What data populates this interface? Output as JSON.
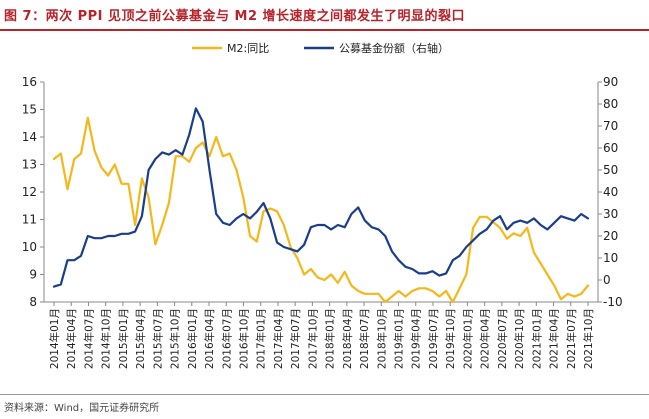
{
  "figure": {
    "title": "图 7：两次 PPI 见顶之前公募基金与 M2 增长速度之间都发生了明显的裂口",
    "source": "资料来源：Wind，国元证券研究所"
  },
  "colors": {
    "title": "#b8232a",
    "m2": "#f5b719",
    "fund": "#1a3e8c",
    "axis": "#888888"
  },
  "chart_data": {
    "type": "line",
    "title": "",
    "grid": false,
    "legend_position": "top-center",
    "left_axis": {
      "ylim": [
        8,
        16
      ],
      "ticks": [
        8,
        9,
        10,
        11,
        12,
        13,
        14,
        15,
        16
      ]
    },
    "right_axis": {
      "ylim": [
        -10,
        90
      ],
      "ticks": [
        -10,
        0,
        10,
        20,
        30,
        40,
        50,
        60,
        70,
        80,
        90
      ]
    },
    "x_labels": [
      "2014年01月",
      "2014年04月",
      "2014年07月",
      "2014年10月",
      "2015年01月",
      "2015年04月",
      "2015年07月",
      "2015年10月",
      "2016年01月",
      "2016年04月",
      "2016年07月",
      "2016年10月",
      "2017年01月",
      "2017年04月",
      "2017年07月",
      "2017年10月",
      "2018年01月",
      "2018年04月",
      "2018年07月",
      "2018年10月",
      "2019年01月",
      "2019年04月",
      "2019年07月",
      "2019年10月",
      "2020年01月",
      "2020年04月",
      "2020年07月",
      "2020年10月",
      "2021年01月",
      "2021年04月",
      "2021年07月",
      "2021年10月"
    ],
    "series": [
      {
        "name": "M2:同比",
        "axis": "left",
        "values": [
          13.2,
          13.4,
          12.1,
          13.2,
          13.4,
          14.7,
          13.5,
          12.9,
          12.6,
          13.0,
          12.3,
          12.3,
          10.8,
          12.5,
          11.8,
          10.1,
          10.8,
          11.6,
          13.3,
          13.3,
          13.1,
          13.6,
          13.8,
          13.3,
          14.0,
          13.3,
          13.4,
          12.8,
          11.8,
          10.4,
          10.2,
          11.3,
          11.4,
          11.3,
          10.8,
          10.0,
          9.6,
          9.0,
          9.2,
          8.9,
          8.8,
          9.0,
          8.7,
          9.1,
          8.6,
          8.4,
          8.3,
          8.3,
          8.3,
          8.0,
          8.2,
          8.4,
          8.2,
          8.4,
          8.5,
          8.5,
          8.4,
          8.2,
          8.4,
          8.0,
          8.5,
          9.0,
          10.7,
          11.1,
          11.1,
          10.9,
          10.7,
          10.3,
          10.5,
          10.4,
          10.7,
          9.8,
          9.4,
          9.0,
          8.6,
          8.1,
          8.3,
          8.2,
          8.3,
          8.6
        ]
      },
      {
        "name": "公募基金份额（右轴）",
        "axis": "right",
        "values": [
          -3,
          -2,
          9,
          9,
          11,
          20,
          19,
          19,
          20,
          20,
          21,
          21,
          22,
          29,
          50,
          55,
          58,
          57,
          59,
          57,
          66,
          78,
          72,
          50,
          30,
          26,
          25,
          28,
          30,
          28,
          31,
          35,
          28,
          17,
          15,
          14,
          13,
          16,
          24,
          25,
          25,
          23,
          25,
          24,
          30,
          33,
          27,
          24,
          23,
          20,
          13,
          9,
          6,
          5,
          3,
          3,
          4,
          2,
          3,
          9,
          11,
          15,
          18,
          21,
          23,
          27,
          29,
          23,
          26,
          27,
          26,
          28,
          25,
          23,
          26,
          29,
          28,
          27,
          30,
          28
        ]
      }
    ]
  }
}
